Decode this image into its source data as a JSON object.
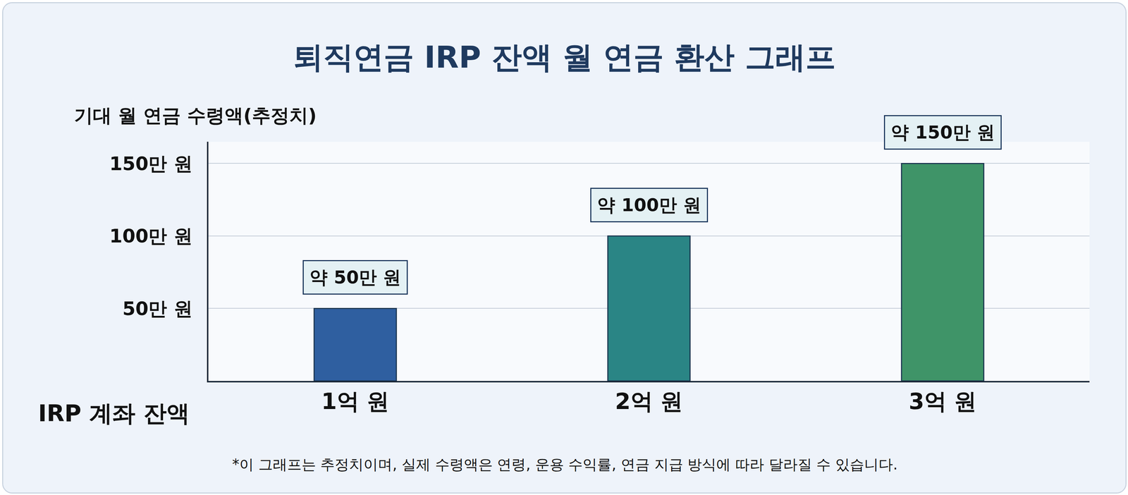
{
  "chart_data": {
    "type": "bar",
    "title": "퇴직연금 IRP 잔액 월 연금 환산 그래프",
    "x_label": "IRP 계좌 잔액",
    "y_label": "기대 월 연금 수령액(추정치)",
    "categories": [
      "1억 원",
      "2억 원",
      "3억 원"
    ],
    "values": [
      50,
      100,
      150
    ],
    "value_labels": [
      "약 50만 원",
      "약 100만 원",
      "약 150만 원"
    ],
    "data_labels": true,
    "colors": [
      "#2f5fa0",
      "#2a8585",
      "#3f9468"
    ],
    "ylim": [
      0,
      165
    ],
    "yticks": [
      {
        "value": 50,
        "label": "50만 원"
      },
      {
        "value": 100,
        "label": "100만 원"
      },
      {
        "value": 150,
        "label": "150만 원"
      }
    ],
    "grid": true,
    "annotations": [
      "*이 그래프는 추정치이며, 실제 수령액은 연령, 운용 수익률, 연금 지급 방식에 따라 달라질 수 있습니다."
    ]
  }
}
